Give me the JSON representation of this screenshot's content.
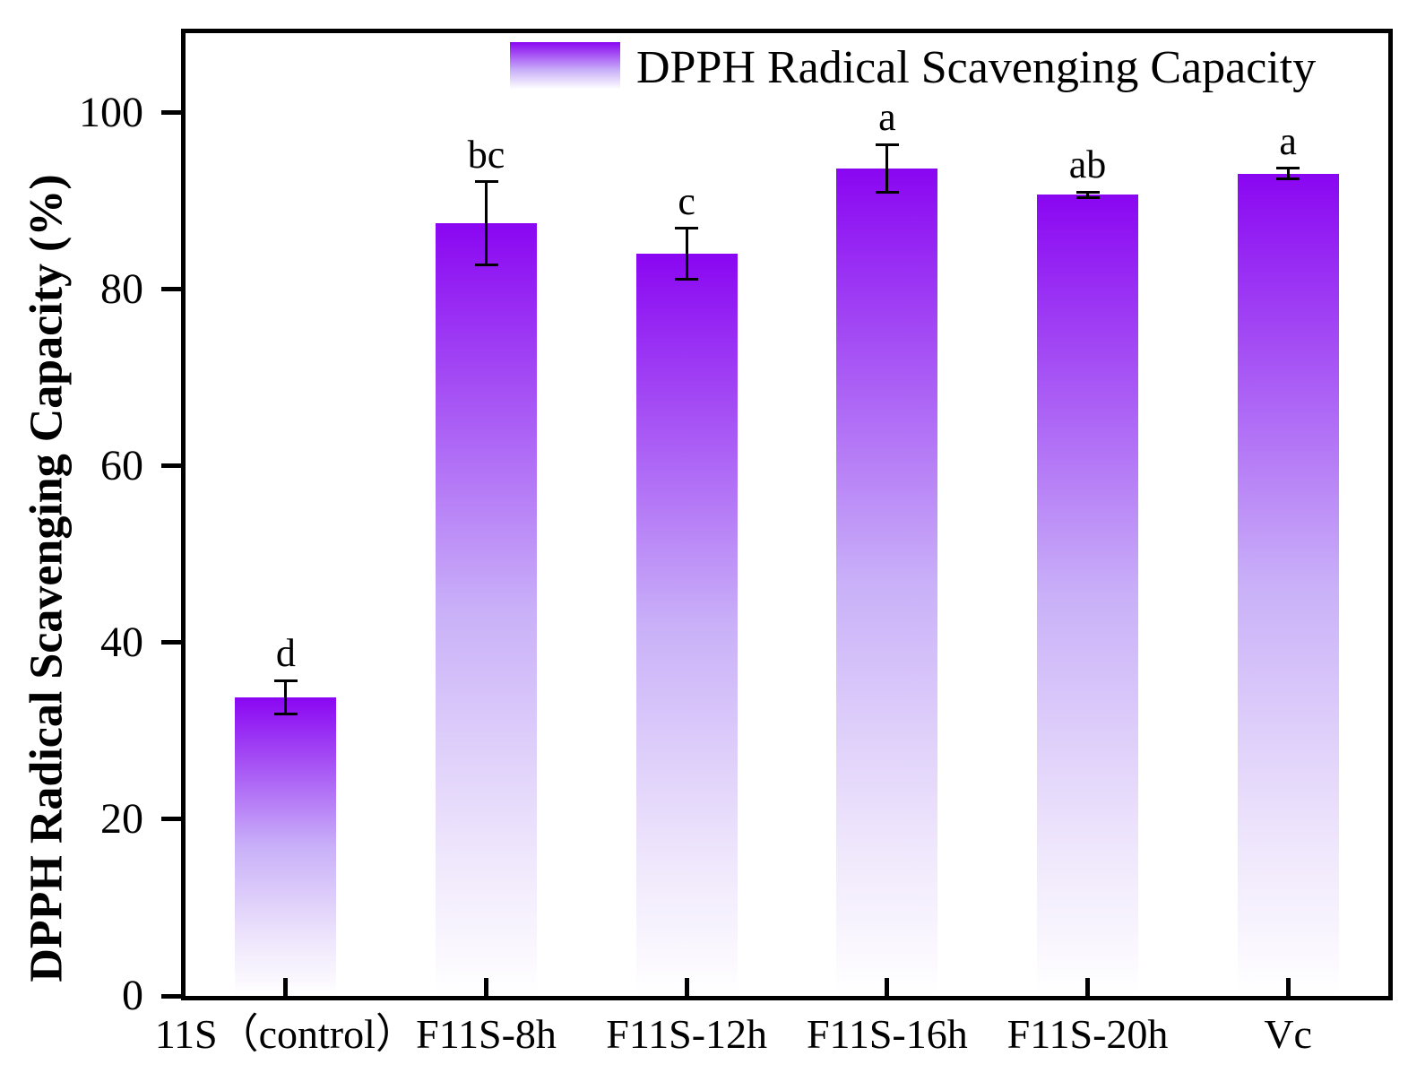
{
  "figure": {
    "background": "#ffffff",
    "axis_color": "#000000"
  },
  "chart_data": {
    "type": "bar",
    "title": "",
    "xlabel": "",
    "ylabel": "DPPH Radical Scavenging Capacity (%)",
    "ylim": [
      0,
      109
    ],
    "yticks": [
      0,
      20,
      40,
      60,
      80,
      100
    ],
    "grid": false,
    "legend_position": "top-center-inside",
    "categories": [
      "11S（control）",
      "F11S-8h",
      "F11S-12h",
      "F11S-16h",
      "F11S-20h",
      "Vc"
    ],
    "series": [
      {
        "name": "DPPH Radical Scavenging Capacity",
        "values": [
          33.8,
          87.5,
          84.0,
          93.7,
          90.7,
          93.1
        ],
        "errors": [
          1.9,
          4.7,
          2.9,
          2.7,
          0.3,
          0.6
        ],
        "sig_letters": [
          "d",
          "bc",
          "c",
          "a",
          "ab",
          "a"
        ]
      }
    ],
    "bar_color_top": "#8a06f2",
    "bar_color_mid": "#c9b0f8",
    "bar_color_bottom": "#ffffff",
    "error_bar_color": "#000000"
  }
}
